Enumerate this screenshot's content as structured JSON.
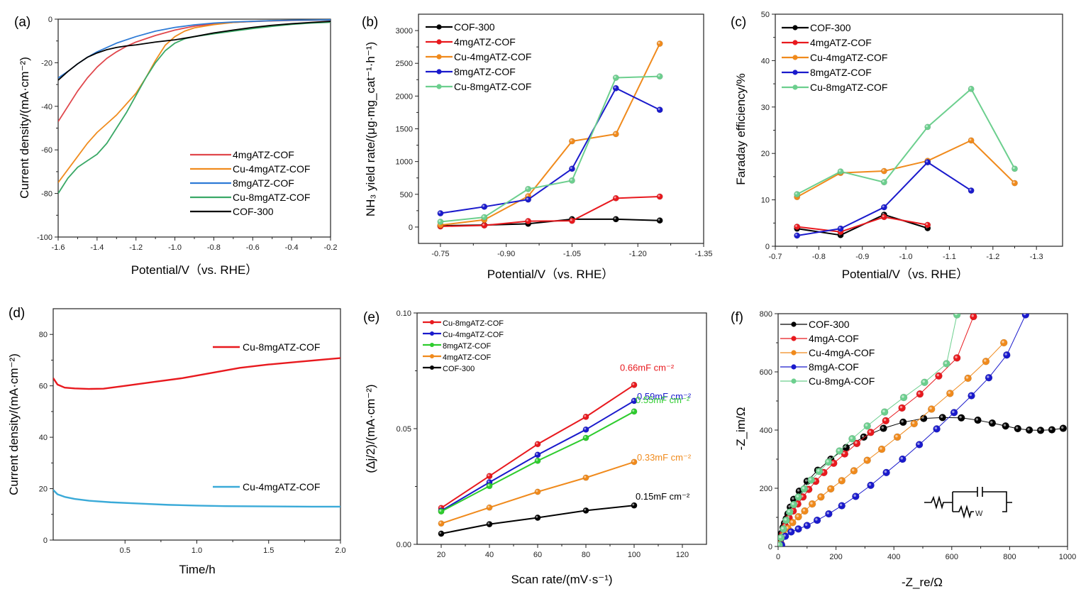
{
  "chart_data": [
    {
      "panel": "(a)",
      "type": "line",
      "xlabel": "Potential/V（vs. RHE）",
      "ylabel": "Current density/(mA·cm⁻²)",
      "xlim": [
        -1.6,
        -0.2
      ],
      "ylim": [
        -100,
        0
      ],
      "xticks": [
        -1.6,
        -1.4,
        -1.2,
        -1.0,
        -0.8,
        -0.6,
        -0.4,
        -0.2
      ],
      "xtick_labels": [
        "-1.6",
        "-1.4",
        "-1.2",
        "-1.0",
        "-0.8",
        "-0.6",
        "-0.4",
        "-0.2"
      ],
      "yticks": [
        -100,
        -80,
        -60,
        -40,
        -20,
        0
      ],
      "ytick_labels": [
        "-100",
        "-80",
        "-60",
        "-40",
        "-20",
        "0"
      ],
      "legend_position": "bottom-right",
      "series": [
        {
          "name": "4mgATZ-COF",
          "color": "#e0474c",
          "x": [
            -1.6,
            -1.55,
            -1.5,
            -1.45,
            -1.4,
            -1.35,
            -1.3,
            -1.25,
            -1.2,
            -1.1,
            -1.0,
            -0.9,
            -0.8,
            -0.7,
            -0.6,
            -0.5,
            -0.4,
            -0.3,
            -0.2
          ],
          "y": [
            -47,
            -40,
            -33,
            -27,
            -22,
            -18,
            -15,
            -12.5,
            -10.5,
            -7.5,
            -5,
            -3.2,
            -2.2,
            -1.5,
            -1.1,
            -0.8,
            -0.6,
            -0.5,
            -0.4
          ]
        },
        {
          "name": "Cu-4mgATZ-COF",
          "color": "#f08c1e",
          "x": [
            -1.6,
            -1.55,
            -1.5,
            -1.45,
            -1.4,
            -1.35,
            -1.3,
            -1.25,
            -1.2,
            -1.15,
            -1.1,
            -1.05,
            -1.0,
            -0.95,
            -0.9,
            -0.8,
            -0.7,
            -0.6,
            -0.5,
            -0.4,
            -0.3,
            -0.2
          ],
          "y": [
            -75,
            -69,
            -63,
            -57,
            -52,
            -48,
            -44,
            -39,
            -34,
            -27,
            -19,
            -12,
            -8,
            -5.5,
            -4,
            -2.5,
            -1.5,
            -1,
            -0.7,
            -0.5,
            -0.4,
            -0.3
          ]
        },
        {
          "name": "8mgATZ-COF",
          "color": "#2e7bd6",
          "x": [
            -1.6,
            -1.55,
            -1.5,
            -1.45,
            -1.4,
            -1.35,
            -1.3,
            -1.2,
            -1.1,
            -1.0,
            -0.9,
            -0.8,
            -0.7,
            -0.6,
            -0.5,
            -0.4,
            -0.3,
            -0.2
          ],
          "y": [
            -27,
            -24,
            -20.5,
            -17.5,
            -15,
            -13,
            -11,
            -8,
            -5.5,
            -3.8,
            -2.6,
            -1.8,
            -1.3,
            -1,
            -0.7,
            -0.5,
            -0.4,
            -0.3
          ]
        },
        {
          "name": "Cu-8mgATZ-COF",
          "color": "#3aa866",
          "x": [
            -1.6,
            -1.55,
            -1.5,
            -1.45,
            -1.4,
            -1.35,
            -1.3,
            -1.25,
            -1.2,
            -1.15,
            -1.1,
            -1.05,
            -1.0,
            -0.95,
            -0.9,
            -0.8,
            -0.7,
            -0.6,
            -0.5,
            -0.4,
            -0.3,
            -0.2
          ],
          "y": [
            -80,
            -73,
            -68,
            -65,
            -62,
            -57,
            -50,
            -43,
            -35,
            -27,
            -20,
            -14.5,
            -11,
            -9,
            -8,
            -6.7,
            -5.5,
            -4.3,
            -3.3,
            -2.4,
            -1.8,
            -1.4
          ]
        },
        {
          "name": "COF-300",
          "color": "#000000",
          "x": [
            -1.6,
            -1.55,
            -1.5,
            -1.45,
            -1.4,
            -1.35,
            -1.3,
            -1.25,
            -1.2,
            -1.1,
            -1.0,
            -0.9,
            -0.8,
            -0.7,
            -0.6,
            -0.5,
            -0.4,
            -0.3,
            -0.2
          ],
          "y": [
            -28,
            -24,
            -20.5,
            -17.5,
            -15.5,
            -14,
            -13,
            -12.3,
            -11.8,
            -10.5,
            -9.5,
            -8,
            -6.3,
            -5,
            -3.8,
            -2.8,
            -2.1,
            -1.5,
            -1
          ]
        }
      ]
    },
    {
      "panel": "(b)",
      "type": "line",
      "xlabel": "Potential/V（vs. RHE）",
      "ylabel": "NH₃ yield rate/(μg·mg_cat⁻¹·h⁻¹)",
      "xlim": [
        -0.7,
        -1.35
      ],
      "ylim": [
        -250,
        3250
      ],
      "xticks": [
        -0.75,
        -0.9,
        -1.05,
        -1.2,
        -1.35
      ],
      "xtick_labels": [
        "-0.75",
        "-0.90",
        "-1.05",
        "-1.20",
        "-1.35"
      ],
      "yticks": [
        0,
        500,
        1000,
        1500,
        2000,
        2500,
        3000
      ],
      "ytick_labels": [
        "0",
        "500",
        "1000",
        "1500",
        "2000",
        "2500",
        "3000"
      ],
      "legend_position": "top-left",
      "x": [
        -0.75,
        -0.85,
        -0.95,
        -1.05,
        -1.15,
        -1.25
      ],
      "series": [
        {
          "name": "COF-300",
          "color": "#000000",
          "values": [
            20,
            30,
            50,
            120,
            120,
            100
          ]
        },
        {
          "name": "4mgATZ-COF",
          "color": "#e8191e",
          "values": [
            10,
            25,
            90,
            95,
            440,
            465
          ]
        },
        {
          "name": "Cu-4mgATZ-COF",
          "color": "#f08a1c",
          "values": [
            30,
            110,
            470,
            1310,
            1420,
            2800
          ]
        },
        {
          "name": "8mgATZ-COF",
          "color": "#1a1acc",
          "values": [
            210,
            310,
            420,
            890,
            2120,
            1790
          ]
        },
        {
          "name": "Cu-8mgATZ-COF",
          "color": "#6ccf8e",
          "values": [
            80,
            150,
            580,
            710,
            2280,
            2300
          ]
        }
      ]
    },
    {
      "panel": "(c)",
      "type": "line",
      "xlabel": "Potential/V（vs. RHE）",
      "ylabel": "Faraday efficiency/%",
      "xlim": [
        -0.7,
        -1.36
      ],
      "ylim": [
        0,
        50
      ],
      "xticks": [
        -0.7,
        -0.8,
        -0.9,
        -1.0,
        -1.1,
        -1.2,
        -1.3
      ],
      "xtick_labels": [
        "-0.7",
        "-0.8",
        "-0.9",
        "-1.0",
        "-1.1",
        "-1.2",
        "-1.3"
      ],
      "yticks": [
        0,
        10,
        20,
        30,
        40,
        50
      ],
      "ytick_labels": [
        "0",
        "10",
        "20",
        "30",
        "40",
        "50"
      ],
      "legend_position": "top-left",
      "series": [
        {
          "name": "COF-300",
          "color": "#000000",
          "x": [
            -0.75,
            -0.85,
            -0.95,
            -1.05
          ],
          "values": [
            3.8,
            2.4,
            6.8,
            3.9
          ]
        },
        {
          "name": "4mgATZ-COF",
          "color": "#e8191e",
          "x": [
            -0.75,
            -0.85,
            -0.95,
            -1.05
          ],
          "values": [
            4.2,
            3.1,
            6.3,
            4.6
          ]
        },
        {
          "name": "Cu-4mgATZ-COF",
          "color": "#f08a1c",
          "x": [
            -0.75,
            -0.85,
            -0.95,
            -1.05,
            -1.15,
            -1.25
          ],
          "values": [
            10.6,
            15.8,
            16.2,
            18.4,
            22.8,
            13.6
          ]
        },
        {
          "name": "8mgATZ-COF",
          "color": "#1a1acc",
          "x": [
            -0.75,
            -0.85,
            -0.95,
            -1.05,
            -1.15
          ],
          "values": [
            2.3,
            3.8,
            8.4,
            18.1,
            12.0
          ]
        },
        {
          "name": "Cu-8mgATZ-COF",
          "color": "#6ccf8e",
          "x": [
            -0.75,
            -0.85,
            -0.95,
            -1.05,
            -1.15,
            -1.25
          ],
          "values": [
            11.2,
            16.1,
            13.8,
            25.7,
            33.9,
            16.7
          ]
        }
      ]
    },
    {
      "panel": "(d)",
      "type": "line",
      "xlabel": "Time/h",
      "ylabel": "Current density/(mA·cm⁻²)",
      "xlim": [
        0,
        2.0
      ],
      "ylim": [
        0,
        90
      ],
      "xticks": [
        0.5,
        1.0,
        1.5,
        2.0
      ],
      "xtick_labels": [
        "0.5",
        "1.0",
        "1.5",
        "2.0"
      ],
      "yticks": [
        0,
        20,
        40,
        60,
        80
      ],
      "ytick_labels": [
        "0",
        "20",
        "40",
        "60",
        "80"
      ],
      "series": [
        {
          "name": "Cu-8mgATZ-COF",
          "color": "#e8191e",
          "x": [
            0,
            0.03,
            0.08,
            0.15,
            0.25,
            0.35,
            0.5,
            0.7,
            0.9,
            1.1,
            1.3,
            1.5,
            1.7,
            1.9,
            2.0
          ],
          "values": [
            63,
            60.5,
            59.3,
            59,
            58.8,
            58.9,
            60,
            61.5,
            63,
            65,
            67,
            68.3,
            69.3,
            70.3,
            70.8
          ]
        },
        {
          "name": "Cu-4mgATZ-COF",
          "color": "#3aaad8",
          "x": [
            0,
            0.03,
            0.08,
            0.15,
            0.25,
            0.4,
            0.6,
            0.8,
            1.0,
            1.2,
            1.5,
            1.8,
            2.0
          ],
          "values": [
            19.5,
            17.8,
            16.8,
            16,
            15.3,
            14.7,
            14.2,
            13.7,
            13.4,
            13.2,
            13.1,
            13.0,
            13.0
          ]
        }
      ]
    },
    {
      "panel": "(e)",
      "type": "line",
      "xlabel": "Scan rate/(mV·s⁻¹)",
      "ylabel": "(Δj/2)/(mA·cm⁻²)",
      "xlim": [
        10,
        130
      ],
      "ylim": [
        0,
        0.1
      ],
      "xticks": [
        20,
        40,
        60,
        80,
        100,
        120
      ],
      "xtick_labels": [
        "20",
        "40",
        "60",
        "80",
        "100",
        "120"
      ],
      "yticks": [
        0,
        0.05,
        0.1
      ],
      "ytick_labels": [
        "0.00",
        "0.05",
        "0.10"
      ],
      "legend_position": "top-left",
      "x": [
        20,
        40,
        60,
        80,
        100
      ],
      "series": [
        {
          "name": "Cu-8mgATZ-COF",
          "color": "#e8191e",
          "values": [
            0.0157,
            0.0295,
            0.0433,
            0.0551,
            0.0689
          ],
          "annotation": "0.66mF cm⁻²"
        },
        {
          "name": "Cu-4mgATZ-COF",
          "color": "#1a1acc",
          "values": [
            0.0145,
            0.0268,
            0.0387,
            0.0496,
            0.062
          ],
          "annotation": "0.59mF cm⁻²"
        },
        {
          "name": "8mgATZ-COF",
          "color": "#2ecc2e",
          "values": [
            0.0142,
            0.0252,
            0.0361,
            0.046,
            0.0574
          ],
          "annotation": "0.55mF cm⁻²"
        },
        {
          "name": "4mgATZ-COF",
          "color": "#f08a1c",
          "values": [
            0.009,
            0.0159,
            0.0227,
            0.0288,
            0.0356
          ],
          "annotation": "0.33mF cm⁻²"
        },
        {
          "name": "COF-300",
          "color": "#000000",
          "values": [
            0.0046,
            0.0087,
            0.0115,
            0.0146,
            0.0168
          ],
          "annotation": "0.15mF cm⁻²"
        }
      ]
    },
    {
      "panel": "(f)",
      "type": "scatter",
      "xlabel": "-Z_re/Ω",
      "ylabel": "-Z_im/Ω",
      "xlim": [
        0,
        1000
      ],
      "ylim": [
        0,
        800
      ],
      "xticks": [
        0,
        200,
        400,
        600,
        800,
        1000
      ],
      "xtick_labels": [
        "0",
        "200",
        "400",
        "600",
        "800",
        "1000"
      ],
      "yticks": [
        0,
        200,
        400,
        600,
        800
      ],
      "ytick_labels": [
        "0",
        "200",
        "400",
        "600",
        "800"
      ],
      "legend_position": "top-left",
      "inset": "equivalent circuit: R — (C ∥ R–W)",
      "inset_label": "W",
      "series": [
        {
          "name": "COF-300",
          "color": "#000000",
          "x": [
            5,
            8,
            12,
            17,
            22,
            28,
            34,
            42,
            54,
            73,
            100,
            137,
            182,
            235,
            296,
            364,
            432,
            503,
            568,
            633,
            690,
            740,
            786,
            828,
            868,
            907,
            946,
            985
          ],
          "values": [
            10,
            25,
            45,
            65,
            80,
            95,
            112,
            135,
            162,
            190,
            224,
            262,
            300,
            340,
            376,
            406,
            427,
            440,
            443,
            442,
            434,
            424,
            414,
            405,
            400,
            399,
            401,
            406
          ]
        },
        {
          "name": "4mgA-COF",
          "color": "#e8191e",
          "x": [
            8,
            15,
            25,
            38,
            52,
            68,
            86,
            106,
            130,
            158,
            192,
            230,
            272,
            320,
            372,
            428,
            490,
            555,
            618,
            675
          ],
          "values": [
            10,
            40,
            70,
            98,
            122,
            146,
            170,
            196,
            224,
            254,
            286,
            318,
            354,
            392,
            432,
            476,
            524,
            586,
            648,
            790
          ]
        },
        {
          "name": "Cu-4mgA-COF",
          "color": "#f08a1c",
          "x": [
            10,
            20,
            34,
            50,
            70,
            92,
            118,
            148,
            182,
            220,
            262,
            308,
            358,
            412,
            470,
            530,
            594,
            656,
            718,
            780
          ],
          "values": [
            10,
            40,
            62,
            82,
            102,
            122,
            146,
            170,
            198,
            226,
            260,
            296,
            334,
            376,
            422,
            472,
            526,
            578,
            636,
            700
          ]
        },
        {
          "name": "8mgA-COF",
          "color": "#1a1acc",
          "x": [
            12,
            25,
            45,
            70,
            100,
            135,
            175,
            220,
            268,
            320,
            374,
            430,
            488,
            548,
            608,
            668,
            728,
            790,
            855
          ],
          "values": [
            5,
            35,
            50,
            60,
            72,
            90,
            112,
            140,
            172,
            210,
            254,
            300,
            350,
            404,
            460,
            518,
            580,
            658,
            796
          ]
        },
        {
          "name": "Cu-8mgA-COF",
          "color": "#6ccf8e",
          "x": [
            4,
            10,
            18,
            28,
            40,
            54,
            70,
            90,
            114,
            142,
            174,
            212,
            256,
            308,
            368,
            434,
            506,
            582,
            618
          ],
          "values": [
            5,
            30,
            60,
            90,
            118,
            144,
            170,
            198,
            228,
            258,
            290,
            328,
            370,
            414,
            462,
            512,
            564,
            628,
            796
          ]
        }
      ]
    }
  ]
}
